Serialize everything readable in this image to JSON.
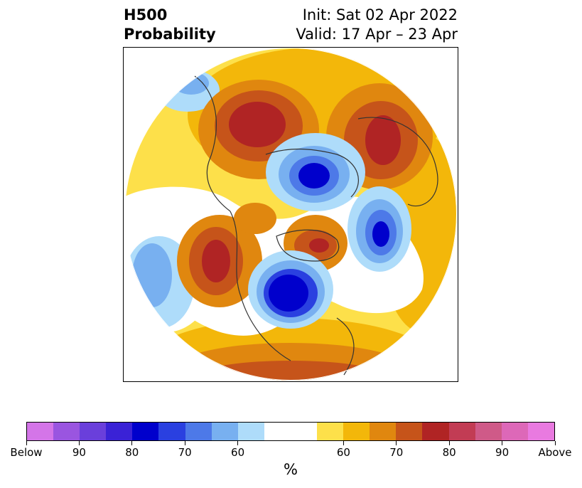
{
  "header": {
    "title_line1": "H500",
    "title_line2": "Probability",
    "init": "Init: Sat 02 Apr 2022",
    "valid": "Valid: 17 Apr – 23 Apr"
  },
  "colorbar": {
    "colors": [
      "#d475e8",
      "#9a55e0",
      "#6a3fdb",
      "#3a22d6",
      "#0000cc",
      "#2a40e0",
      "#4d79e8",
      "#78b0f0",
      "#aedcfa",
      "#ffffff",
      "#ffffff",
      "#fde04a",
      "#f3b70a",
      "#e0870f",
      "#c6541a",
      "#b02424",
      "#c23c54",
      "#cf5a88",
      "#dd68b8",
      "#e97ae0"
    ],
    "tick_labels": [
      "Below",
      "90",
      "80",
      "70",
      "60",
      "60",
      "70",
      "80",
      "90",
      "Above"
    ],
    "unit": "%"
  },
  "map": {
    "projection": "north-polar-stereographic",
    "variable": "500-hPa geopotential height tercile probability",
    "anomalies": [
      {
        "region": "northwest North America / Alaska",
        "category": "above",
        "peak": "80"
      },
      {
        "region": "northern Siberia",
        "category": "above",
        "peak": "80"
      },
      {
        "region": "east Asia / Japan",
        "category": "above",
        "peak": "80"
      },
      {
        "region": "Greenland",
        "category": "above",
        "peak": "80"
      },
      {
        "region": "Scandinavia / Barents Sea",
        "category": "above",
        "peak": "60"
      },
      {
        "region": "Arctic Ocean",
        "category": "below",
        "peak": "80"
      },
      {
        "region": "central Canada",
        "category": "below",
        "peak": "80"
      },
      {
        "region": "north Atlantic / Iceland",
        "category": "below",
        "peak": "80"
      },
      {
        "region": "north Pacific",
        "category": "below",
        "peak": "70"
      }
    ]
  }
}
